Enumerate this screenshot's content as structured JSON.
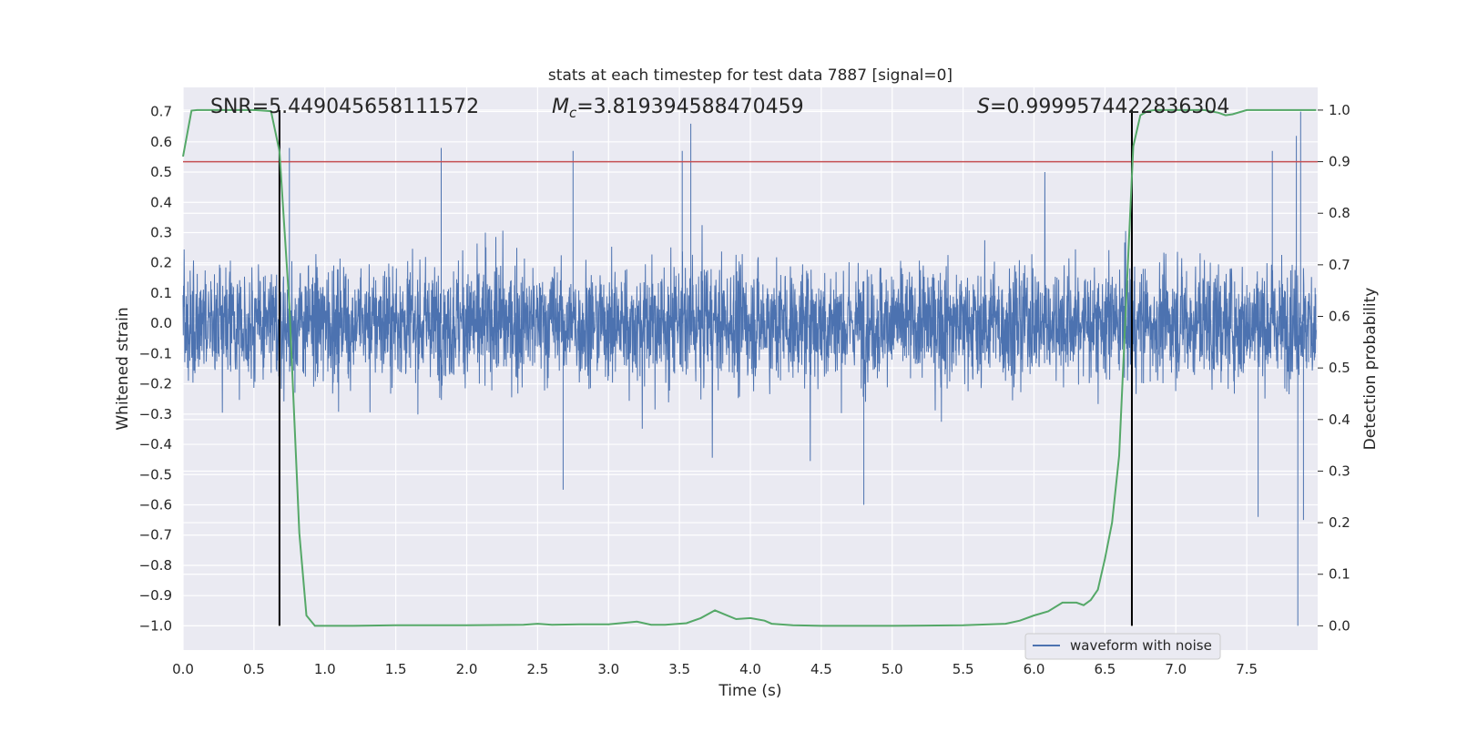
{
  "chart_data": {
    "type": "line",
    "title": "stats at each timestep for test data 7887 [signal=0]",
    "xlabel": "Time (s)",
    "ylabel": "Whitened strain",
    "ylabel_right": "Detection probability",
    "xlim": [
      0.0,
      8.0
    ],
    "ylim": [
      -1.08,
      0.78
    ],
    "ylim_right": [
      -0.047,
      1.044
    ],
    "x_ticks": [
      "0.0",
      "0.5",
      "1.0",
      "1.5",
      "2.0",
      "2.5",
      "3.0",
      "3.5",
      "4.0",
      "4.5",
      "5.0",
      "5.5",
      "6.0",
      "6.5",
      "7.0",
      "7.5"
    ],
    "y_ticks": [
      "0.7",
      "0.6",
      "0.5",
      "0.4",
      "0.3",
      "0.2",
      "0.1",
      "0.0",
      "−0.1",
      "−0.2",
      "−0.3",
      "−0.4",
      "−0.5",
      "−0.6",
      "−0.7",
      "−0.8",
      "−0.9",
      "−1.0"
    ],
    "y_ticks_right": [
      "1.0",
      "0.9",
      "0.8",
      "0.7",
      "0.6",
      "0.5",
      "0.4",
      "0.3",
      "0.2",
      "0.1",
      "0.0"
    ],
    "annotations": {
      "snr_label": "SNR=5.449045658111572",
      "mc_label": "=3.819394588470459",
      "mc_symbol": "M",
      "mc_subscript": "c",
      "s_label": "=0.9999574422836304",
      "s_symbol": "S"
    },
    "threshold": {
      "name": "detection threshold",
      "value": 0.9,
      "axis": "right"
    },
    "vertical_markers": [
      0.68,
      6.69
    ],
    "legend": {
      "entry": "waveform with noise",
      "placement": "lower-right"
    },
    "series": [
      {
        "name": "waveform with noise",
        "axis": "left",
        "description": "whitened strain noise, roughly -0.55..0.66 with outlier at -1.0 near t=7.85",
        "envelope_scale": 0.19,
        "spikes": [
          {
            "t": 3.58,
            "v": 0.66
          },
          {
            "t": 3.52,
            "v": 0.57
          },
          {
            "t": 2.75,
            "v": 0.57
          },
          {
            "t": 7.68,
            "v": 0.57
          },
          {
            "t": 7.85,
            "v": 0.62
          },
          {
            "t": 7.88,
            "v": 0.7
          },
          {
            "t": 7.86,
            "v": -1.0
          },
          {
            "t": 4.8,
            "v": -0.6
          },
          {
            "t": 2.68,
            "v": -0.55
          },
          {
            "t": 7.58,
            "v": -0.64
          },
          {
            "t": 7.9,
            "v": -0.65
          },
          {
            "t": 0.75,
            "v": 0.58
          },
          {
            "t": 1.82,
            "v": 0.58
          }
        ],
        "color": "#4c72b0"
      },
      {
        "name": "detection probability",
        "axis": "right",
        "color": "#55a868",
        "x": [
          0.0,
          0.06,
          0.1,
          0.2,
          0.3,
          0.4,
          0.5,
          0.62,
          0.68,
          0.75,
          0.82,
          0.87,
          0.93,
          1.0,
          1.2,
          1.5,
          2.0,
          2.4,
          2.5,
          2.6,
          2.8,
          3.0,
          3.2,
          3.3,
          3.4,
          3.55,
          3.65,
          3.75,
          3.82,
          3.9,
          4.0,
          4.1,
          4.15,
          4.3,
          4.5,
          4.7,
          5.0,
          5.5,
          5.8,
          5.9,
          6.0,
          6.1,
          6.2,
          6.25,
          6.3,
          6.35,
          6.4,
          6.45,
          6.5,
          6.55,
          6.6,
          6.65,
          6.7,
          6.75,
          6.8,
          6.85,
          7.0,
          7.2,
          7.3,
          7.35,
          7.4,
          7.5,
          7.6,
          7.7,
          7.8,
          7.9,
          7.99
        ],
        "values": [
          0.91,
          0.999,
          1.0,
          1.0,
          1.0,
          1.0,
          1.0,
          0.998,
          0.92,
          0.62,
          0.18,
          0.02,
          0.0,
          0.0,
          0.0,
          0.001,
          0.001,
          0.002,
          0.004,
          0.002,
          0.003,
          0.003,
          0.008,
          0.002,
          0.002,
          0.005,
          0.015,
          0.03,
          0.022,
          0.013,
          0.015,
          0.01,
          0.004,
          0.001,
          0.0,
          0.0,
          0.0,
          0.001,
          0.004,
          0.01,
          0.02,
          0.028,
          0.045,
          0.045,
          0.045,
          0.04,
          0.05,
          0.07,
          0.13,
          0.2,
          0.33,
          0.63,
          0.93,
          0.99,
          0.998,
          1.0,
          1.0,
          1.0,
          0.995,
          0.99,
          0.992,
          1.0,
          1.0,
          1.0,
          1.0,
          1.0,
          1.0
        ]
      }
    ]
  }
}
